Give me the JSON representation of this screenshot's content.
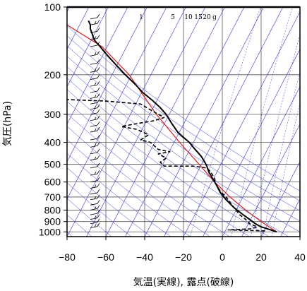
{
  "chart_data": {
    "type": "line",
    "title": "",
    "xlabel": "気温(実線), 露点(破線)",
    "ylabel": "気圧(hPa)",
    "xlim": [
      -80,
      40
    ],
    "ylim": [
      1050,
      100
    ],
    "y_scale": "log",
    "x_ticks": [
      "−80",
      "−60",
      "−40",
      "−20",
      "0",
      "20",
      "40"
    ],
    "x_tick_values": [
      -80,
      -60,
      -40,
      -20,
      0,
      20,
      40
    ],
    "y_ticks": [
      "100",
      "200",
      "300",
      "400",
      "500",
      "600",
      "700",
      "800",
      "900",
      "1000"
    ],
    "y_tick_values": [
      100,
      200,
      300,
      400,
      500,
      600,
      700,
      800,
      900,
      1000
    ],
    "skew_degC_per_log10": 60,
    "mixing_ratio_labels": [
      "1",
      "5",
      "10",
      "15",
      "20",
      "g"
    ],
    "series": [
      {
        "style": "solid-black",
        "points": [
          [
            28,
            1000
          ],
          [
            25,
            980
          ],
          [
            20,
            950
          ],
          [
            17,
            920
          ],
          [
            14,
            880
          ],
          [
            10,
            830
          ],
          [
            6,
            780
          ],
          [
            2,
            720
          ],
          [
            -1,
            670
          ],
          [
            -3,
            620
          ],
          [
            -5,
            580
          ],
          [
            -7,
            540
          ],
          [
            -8,
            510
          ],
          [
            -9,
            490
          ],
          [
            -11,
            460
          ],
          [
            -14,
            430
          ],
          [
            -17,
            400
          ],
          [
            -20,
            380
          ],
          [
            -23,
            360
          ],
          [
            -26,
            330
          ],
          [
            -29,
            300
          ],
          [
            -32,
            280
          ],
          [
            -36,
            260
          ],
          [
            -41,
            240
          ],
          [
            -45,
            220
          ],
          [
            -50,
            200
          ],
          [
            -55,
            180
          ],
          [
            -59,
            165
          ],
          [
            -63,
            150
          ],
          [
            -66,
            140
          ],
          [
            -67,
            132
          ],
          [
            -68,
            125
          ],
          [
            -68,
            120
          ],
          [
            -69,
            115
          ]
        ]
      },
      {
        "style": "dashed-black",
        "points": [
          [
            22,
            990
          ],
          [
            12,
            985
          ],
          [
            3,
            980
          ],
          [
            15,
            970
          ],
          [
            18,
            950
          ],
          [
            14,
            920
          ],
          [
            12,
            880
          ],
          [
            9,
            840
          ],
          [
            7,
            800
          ],
          [
            4,
            740
          ],
          [
            2,
            700
          ],
          [
            -1,
            660
          ],
          [
            -3,
            620
          ],
          [
            -4,
            580
          ],
          [
            -6,
            540
          ],
          [
            -8,
            520
          ],
          [
            -15,
            510
          ],
          [
            -30,
            510
          ],
          [
            -32,
            490
          ],
          [
            -29,
            470
          ],
          [
            -33,
            450
          ],
          [
            -27,
            440
          ],
          [
            -33,
            430
          ],
          [
            -37,
            400
          ],
          [
            -42,
            390
          ],
          [
            -38,
            370
          ],
          [
            -44,
            350
          ],
          [
            -52,
            340
          ],
          [
            -44,
            330
          ],
          [
            -35,
            320
          ],
          [
            -30,
            310
          ],
          [
            -36,
            290
          ],
          [
            -42,
            270
          ],
          [
            -60,
            262
          ],
          [
            -80,
            258
          ]
        ]
      },
      {
        "style": "solid-red",
        "points": [
          [
            28,
            1000
          ],
          [
            20,
            900
          ],
          [
            12,
            800
          ],
          [
            4,
            700
          ],
          [
            -4,
            600
          ],
          [
            -12,
            500
          ],
          [
            -22,
            400
          ],
          [
            -34,
            300
          ],
          [
            -48,
            200
          ],
          [
            -62,
            150
          ],
          [
            -80,
            120
          ]
        ]
      }
    ],
    "wind_barbs": {
      "x": -68,
      "pressures": [
        960,
        920,
        880,
        840,
        800,
        760,
        720,
        680,
        640,
        600,
        560,
        520,
        480,
        450,
        420,
        390,
        360,
        340,
        320,
        300,
        285,
        270,
        255,
        240,
        225,
        210,
        195,
        180,
        165,
        150,
        140,
        130,
        120,
        113
      ]
    },
    "grid": true,
    "background_lines_color": "#3333dd"
  }
}
